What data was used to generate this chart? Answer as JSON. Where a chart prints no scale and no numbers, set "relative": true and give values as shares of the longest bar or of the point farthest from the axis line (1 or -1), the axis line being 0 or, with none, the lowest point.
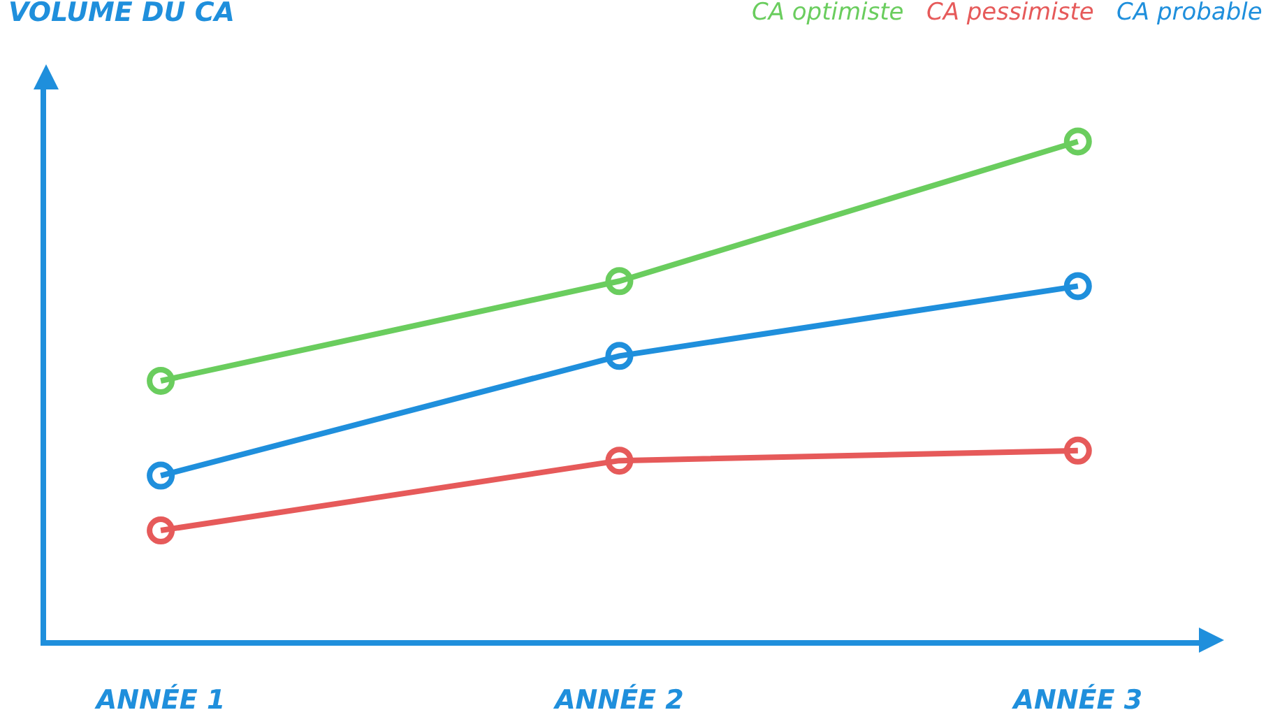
{
  "chart_data": {
    "type": "line",
    "ylabel": "VOLUME DU CA",
    "categories": [
      "ANNÉE 1",
      "ANNÉE 2",
      "ANNÉE 3"
    ],
    "relative": true,
    "marker": "circle",
    "line_style": "solid",
    "grid": false,
    "legend": "top right",
    "series": [
      {
        "name": "CA optimiste",
        "color": "#6acd5e",
        "values": [
          0.52,
          0.72,
          1
        ]
      },
      {
        "name": "CA pessimiste",
        "color": "#e65a5a",
        "values": [
          0.22,
          0.36,
          0.38
        ]
      },
      {
        "name": "CA probable",
        "color": "#1f8fdc",
        "values": [
          0.33,
          0.57,
          0.71
        ]
      }
    ]
  }
}
